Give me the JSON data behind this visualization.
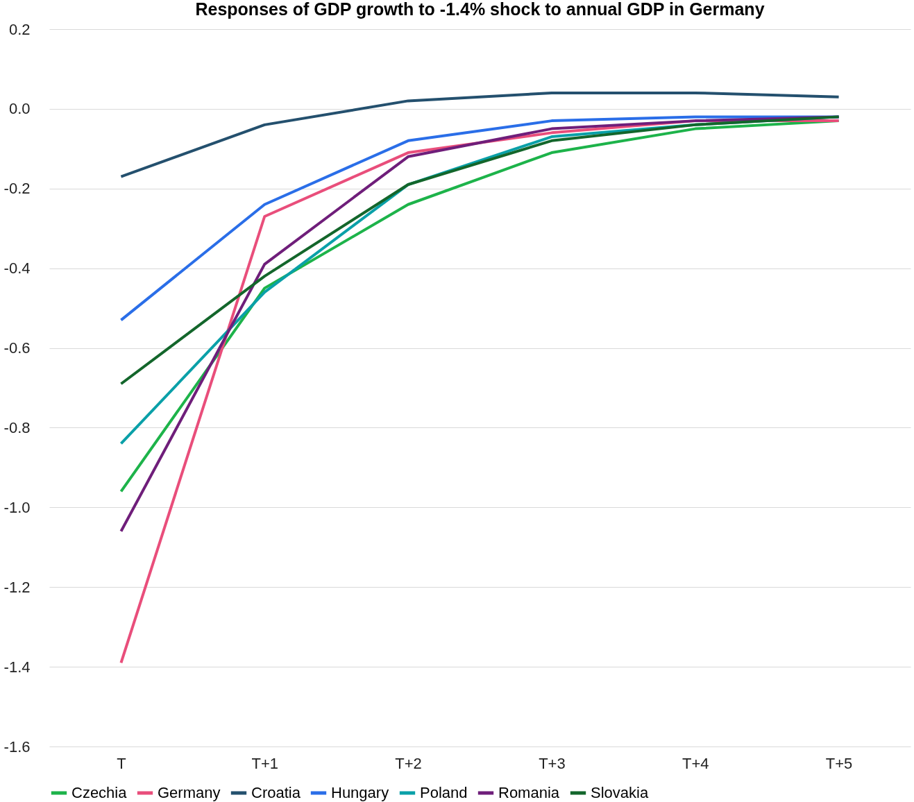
{
  "chart_data": {
    "type": "line",
    "title": "Responses of GDP growth to -1.4% shock to annual GDP in Germany",
    "categories": [
      "T",
      "T+1",
      "T+2",
      "T+3",
      "T+4",
      "T+5"
    ],
    "series": [
      {
        "name": "Czechia",
        "color": "#1db34a",
        "values": [
          -0.96,
          -0.45,
          -0.24,
          -0.11,
          -0.05,
          -0.03
        ]
      },
      {
        "name": "Germany",
        "color": "#e94e7b",
        "values": [
          -1.39,
          -0.27,
          -0.11,
          -0.06,
          -0.03,
          -0.03
        ]
      },
      {
        "name": "Croatia",
        "color": "#24506e",
        "values": [
          -0.17,
          -0.04,
          0.02,
          0.04,
          0.04,
          0.03
        ]
      },
      {
        "name": "Hungary",
        "color": "#2a6ee8",
        "values": [
          -0.53,
          -0.24,
          -0.08,
          -0.03,
          -0.02,
          -0.02
        ]
      },
      {
        "name": "Poland",
        "color": "#0aa0a8",
        "values": [
          -0.84,
          -0.46,
          -0.19,
          -0.07,
          -0.04,
          -0.02
        ]
      },
      {
        "name": "Romania",
        "color": "#6f1e7a",
        "values": [
          -1.06,
          -0.39,
          -0.12,
          -0.05,
          -0.03,
          -0.02
        ]
      },
      {
        "name": "Slovakia",
        "color": "#13662b",
        "values": [
          -0.69,
          -0.42,
          -0.19,
          -0.08,
          -0.04,
          -0.02
        ]
      }
    ],
    "ylim": [
      -1.6,
      0.2
    ],
    "yticks": [
      {
        "value": 0.2,
        "label": "0.2"
      },
      {
        "value": 0,
        "label": "0.0"
      },
      {
        "value": -0.2,
        "label": "-0.2"
      },
      {
        "value": -0.4,
        "label": "-0.4"
      },
      {
        "value": -0.6,
        "label": "-0.6"
      },
      {
        "value": -0.8,
        "label": "-0.8"
      },
      {
        "value": -1.0,
        "label": "-1.0"
      },
      {
        "value": -1.2,
        "label": "-1.2"
      },
      {
        "value": -1.4,
        "label": "-1.4"
      },
      {
        "value": -1.6,
        "label": "-1.6"
      }
    ],
    "grid": "y",
    "legend": "bottom",
    "marker": "none",
    "line_style": "solid"
  }
}
